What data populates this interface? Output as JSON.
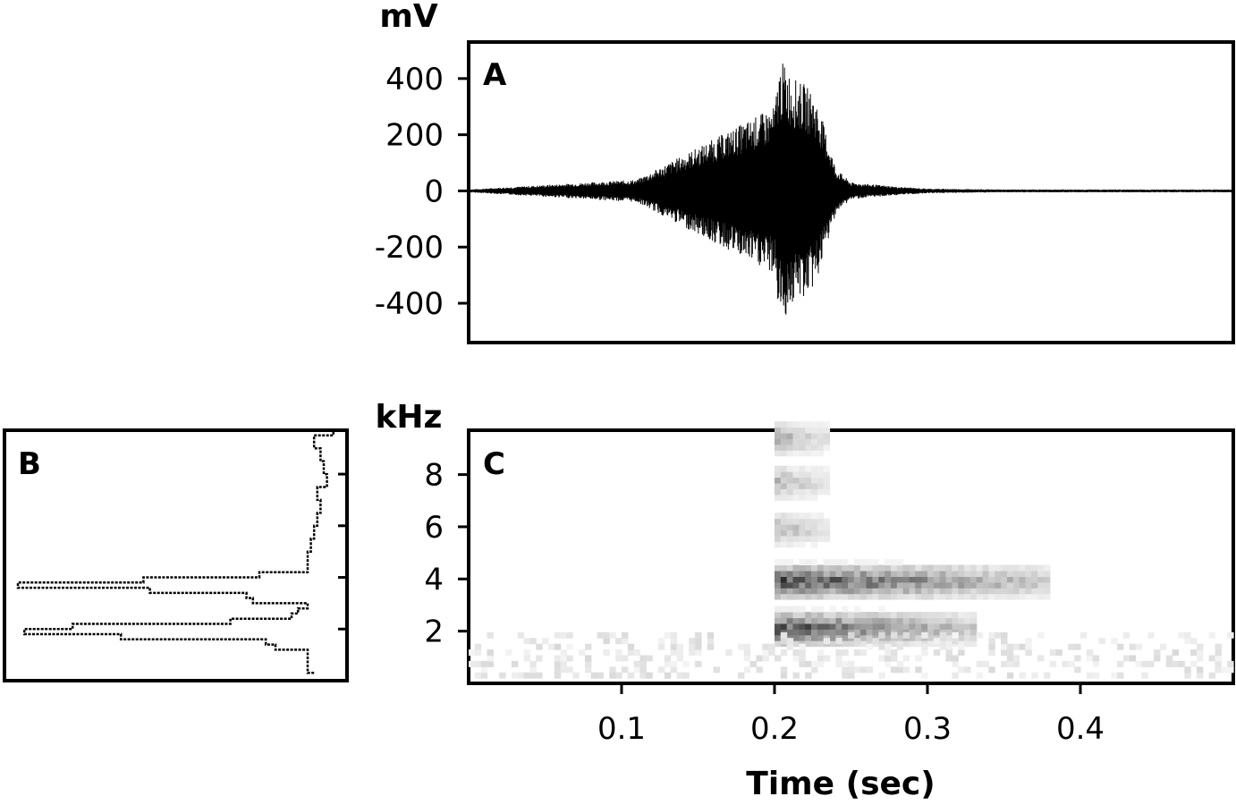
{
  "chart_data": [
    {
      "panel": "A",
      "type": "line",
      "ylabel": "mV",
      "xlim": [
        0,
        0.5
      ],
      "ylim": [
        -540,
        530
      ],
      "yticks": [
        400,
        200,
        0,
        -200,
        -400
      ],
      "ytick_labels": [
        "400",
        "200",
        "0",
        "-200",
        "-400"
      ],
      "series": [
        {
          "x": [
            0.0,
            0.11,
            0.2,
            0.203,
            0.206,
            0.21,
            0.215,
            0.22,
            0.225,
            0.23,
            0.235,
            0.24,
            0.25,
            0.26,
            0.27,
            0.28,
            0.3,
            0.35,
            0.4,
            0.45,
            0.5
          ],
          "envelope": [
            5,
            40,
            300,
            440,
            460,
            420,
            390,
            380,
            350,
            280,
            180,
            80,
            30,
            25,
            20,
            15,
            8,
            5,
            5,
            5,
            5
          ]
        }
      ],
      "grid": false
    },
    {
      "panel": "B",
      "type": "line",
      "description_axes": "frequency on vertical axis, relative power on horizontal axis",
      "ylim": [
        0,
        9.7
      ],
      "yticks": [
        2,
        4,
        6,
        8
      ],
      "series": [
        {
          "freq": [
            0.3,
            0.8,
            1.0,
            1.2,
            1.4,
            1.6,
            1.8,
            2.0,
            2.2,
            2.4,
            2.6,
            2.8,
            3.0,
            3.2,
            3.4,
            3.6,
            3.8,
            4.0,
            4.2,
            4.4,
            4.6,
            5.0,
            5.5,
            6.0,
            6.5,
            7.0,
            7.5,
            8.0,
            8.5,
            9.0,
            9.5,
            9.7
          ],
          "power": [
            0.08,
            0.1,
            0.1,
            0.1,
            0.2,
            0.23,
            0.68,
            0.98,
            0.83,
            0.34,
            0.15,
            0.13,
            0.1,
            0.27,
            0.29,
            0.59,
            1.0,
            0.61,
            0.25,
            0.1,
            0.1,
            0.1,
            0.09,
            0.08,
            0.07,
            0.06,
            0.07,
            0.04,
            0.05,
            0.06,
            0.08,
            0.02
          ]
        }
      ]
    },
    {
      "panel": "C",
      "type": "heatmap",
      "ylabel": "kHz",
      "xlabel": "Time (sec)",
      "xlim": [
        0,
        0.5
      ],
      "ylim": [
        0,
        9.7
      ],
      "xticks": [
        0.1,
        0.2,
        0.3,
        0.4
      ],
      "xtick_labels": [
        "0.1",
        "0.2",
        "0.3",
        "0.4"
      ],
      "yticks": [
        2,
        4,
        6,
        8
      ],
      "ytick_labels": [
        "2",
        "4",
        "6",
        "8"
      ],
      "bands": [
        {
          "t_start": 0.2,
          "t_end": 0.38,
          "f_center": 3.8,
          "intensity_peak": 0.95
        },
        {
          "t_start": 0.2,
          "t_end": 0.33,
          "f_center": 2.0,
          "intensity_peak": 0.95
        },
        {
          "t_start": 0.2,
          "t_end": 0.235,
          "f_center": 5.8,
          "intensity_peak": 0.4
        },
        {
          "t_start": 0.2,
          "t_end": 0.235,
          "f_center": 7.6,
          "intensity_peak": 0.4
        },
        {
          "t_start": 0.2,
          "t_end": 0.235,
          "f_center": 9.3,
          "intensity_peak": 0.45
        },
        {
          "t_start": 0.0,
          "t_end": 0.5,
          "f_center": 1.0,
          "intensity_peak": 0.15
        }
      ]
    }
  ]
}
